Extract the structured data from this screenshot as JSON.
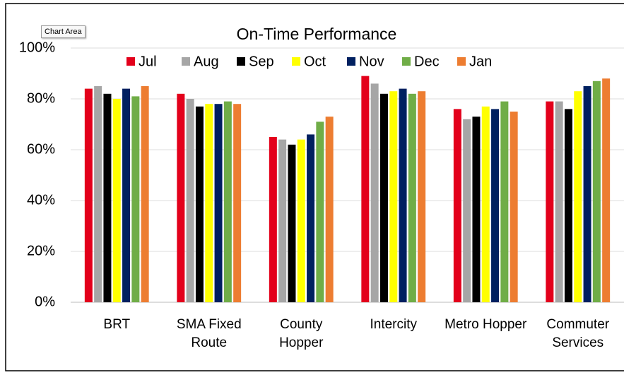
{
  "tooltip": "Chart Area",
  "chart_data": {
    "type": "bar",
    "title": "On-Time Performance",
    "categories": [
      "BRT",
      "SMA Fixed Route",
      "County Hopper",
      "Intercity",
      "Metro Hopper",
      "Commuter Services"
    ],
    "series": [
      {
        "name": "Jul",
        "color": "#e3001b",
        "values": [
          84,
          82,
          65,
          89,
          76,
          79
        ]
      },
      {
        "name": "Aug",
        "color": "#a6a6a6",
        "values": [
          85,
          80,
          64,
          86,
          72,
          79
        ]
      },
      {
        "name": "Sep",
        "color": "#000000",
        "values": [
          82,
          77,
          62,
          82,
          73,
          76
        ]
      },
      {
        "name": "Oct",
        "color": "#ffff00",
        "values": [
          80,
          78,
          64,
          83,
          77,
          83
        ]
      },
      {
        "name": "Nov",
        "color": "#002060",
        "values": [
          84,
          78,
          66,
          84,
          76,
          85
        ]
      },
      {
        "name": "Dec",
        "color": "#70ad47",
        "values": [
          81,
          79,
          71,
          82,
          79,
          87
        ]
      },
      {
        "name": "Jan",
        "color": "#ed7d31",
        "values": [
          85,
          78,
          73,
          83,
          75,
          88
        ]
      }
    ],
    "ylim": [
      0,
      100
    ],
    "yticks": [
      {
        "value": 0,
        "label": "0%"
      },
      {
        "value": 20,
        "label": "20%"
      },
      {
        "value": 40,
        "label": "40%"
      },
      {
        "value": 60,
        "label": "60%"
      },
      {
        "value": 80,
        "label": "80%"
      },
      {
        "value": 100,
        "label": "100%"
      }
    ],
    "grid": true,
    "legend": "top"
  }
}
